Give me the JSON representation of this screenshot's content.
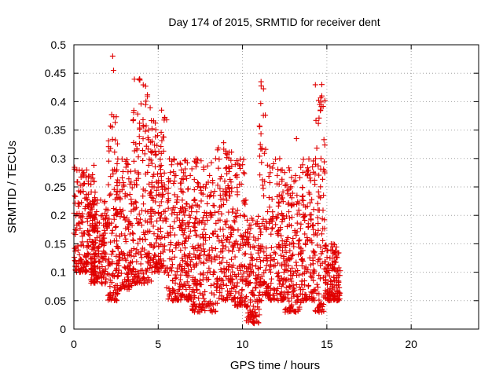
{
  "chart_data": {
    "type": "scatter",
    "title": "Day 174 of 2015, SRMTID for receiver dent",
    "xlabel": "GPS time / hours",
    "ylabel": "SRMTID / TECUs",
    "xlim": [
      0,
      24
    ],
    "ylim": [
      0,
      0.5
    ],
    "x_ticks": [
      0,
      5,
      10,
      15,
      20
    ],
    "y_ticks": [
      0,
      0.05,
      0.1,
      0.15,
      0.2,
      0.25,
      0.3,
      0.35,
      0.4,
      0.45,
      0.5
    ],
    "x_tick_labels": [
      "0",
      "5",
      "10",
      "15",
      "20"
    ],
    "y_tick_labels": [
      "0",
      "0.05",
      "0.1",
      "0.15",
      "0.2",
      "0.25",
      "0.3",
      "0.35",
      "0.4",
      "0.45",
      "0.5"
    ],
    "grid": true,
    "marker": "plus",
    "color": "#e00000",
    "x_data_range": [
      0,
      15.8
    ],
    "clusters": [
      {
        "x": [
          0.0,
          1.3
        ],
        "y": [
          0.1,
          0.29
        ]
      },
      {
        "x": [
          1.0,
          2.0
        ],
        "y": [
          0.08,
          0.23
        ]
      },
      {
        "x": [
          2.0,
          2.6
        ],
        "y": [
          0.05,
          0.38
        ]
      },
      {
        "x": [
          2.5,
          3.5
        ],
        "y": [
          0.07,
          0.3
        ]
      },
      {
        "x": [
          3.5,
          4.6
        ],
        "y": [
          0.08,
          0.44
        ]
      },
      {
        "x": [
          4.5,
          5.5
        ],
        "y": [
          0.1,
          0.38
        ]
      },
      {
        "x": [
          5.5,
          7.0
        ],
        "y": [
          0.05,
          0.3
        ]
      },
      {
        "x": [
          7.0,
          8.5
        ],
        "y": [
          0.03,
          0.3
        ]
      },
      {
        "x": [
          8.5,
          9.5
        ],
        "y": [
          0.05,
          0.33
        ]
      },
      {
        "x": [
          9.5,
          10.2
        ],
        "y": [
          0.04,
          0.3
        ]
      },
      {
        "x": [
          10.2,
          11.0
        ],
        "y": [
          0.01,
          0.2
        ]
      },
      {
        "x": [
          11.0,
          11.4
        ],
        "y": [
          0.05,
          0.43
        ]
      },
      {
        "x": [
          11.4,
          12.5
        ],
        "y": [
          0.05,
          0.3
        ]
      },
      {
        "x": [
          12.5,
          13.5
        ],
        "y": [
          0.03,
          0.29
        ]
      },
      {
        "x": [
          13.5,
          14.3
        ],
        "y": [
          0.05,
          0.3
        ]
      },
      {
        "x": [
          14.3,
          14.9
        ],
        "y": [
          0.03,
          0.43
        ]
      },
      {
        "x": [
          14.9,
          15.8
        ],
        "y": [
          0.05,
          0.15
        ]
      }
    ],
    "highlights": [
      {
        "x": 2.3,
        "y": 0.48
      },
      {
        "x": 2.35,
        "y": 0.455
      },
      {
        "x": 3.9,
        "y": 0.44
      },
      {
        "x": 5.2,
        "y": 0.385
      },
      {
        "x": 11.1,
        "y": 0.435
      },
      {
        "x": 14.7,
        "y": 0.43
      },
      {
        "x": 14.7,
        "y": 0.41
      },
      {
        "x": 13.2,
        "y": 0.335
      },
      {
        "x": 10.6,
        "y": 0.013
      }
    ]
  }
}
